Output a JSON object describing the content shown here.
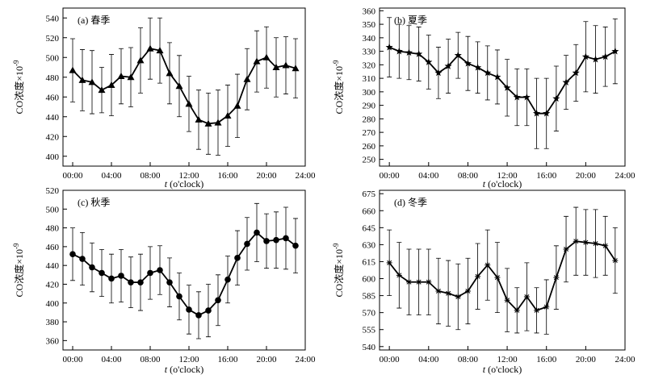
{
  "figure": {
    "xlabel_italic": "t",
    "xlabel_rest": " (o'clock)"
  },
  "chart_data": [
    {
      "type": "line",
      "panel_label": "(a) 春季",
      "marker": "triangle",
      "ylabel": "CO浓度×10",
      "ylabel_exp": "-9",
      "ylim": [
        390,
        550
      ],
      "yticks": [
        400,
        420,
        440,
        460,
        480,
        500,
        520,
        540
      ],
      "xlim": [
        -1,
        24
      ],
      "xticks": [
        0,
        4,
        8,
        12,
        16,
        20,
        24
      ],
      "xticklabels": [
        "00:00",
        "04:00",
        "08:00",
        "12:00",
        "16:00",
        "20:00",
        "24:00"
      ],
      "x": [
        0,
        1,
        2,
        3,
        4,
        5,
        6,
        7,
        8,
        9,
        10,
        11,
        12,
        13,
        14,
        15,
        16,
        17,
        18,
        19,
        20,
        21,
        22,
        23
      ],
      "values": [
        487,
        477,
        475,
        467,
        472,
        481,
        480,
        497,
        509,
        507,
        484,
        471,
        453,
        437,
        433,
        434,
        441,
        451,
        478,
        496,
        500,
        490,
        492,
        489
      ],
      "err": [
        32,
        31,
        32,
        23,
        31,
        28,
        30,
        33,
        31,
        33,
        31,
        31,
        28,
        30,
        31,
        33,
        31,
        32,
        31,
        31,
        31,
        30,
        29,
        30
      ],
      "grid": false
    },
    {
      "type": "line",
      "panel_label": "(b) 夏季",
      "marker": "star",
      "ylabel": "CO浓度×10",
      "ylabel_exp": "-9",
      "ylim": [
        245,
        362
      ],
      "yticks": [
        250,
        260,
        270,
        280,
        290,
        300,
        310,
        320,
        330,
        340,
        350,
        360
      ],
      "xlim": [
        -1,
        24
      ],
      "xticks": [
        0,
        4,
        8,
        12,
        16,
        20,
        24
      ],
      "xticklabels": [
        "00:00",
        "04:00",
        "08:00",
        "12:00",
        "16:00",
        "20:00",
        "24:00"
      ],
      "x": [
        0,
        1,
        2,
        3,
        4,
        5,
        6,
        7,
        8,
        9,
        10,
        11,
        12,
        13,
        14,
        15,
        16,
        17,
        18,
        19,
        20,
        21,
        22,
        23
      ],
      "values": [
        333,
        330,
        329,
        328,
        322,
        314,
        319,
        327,
        321,
        318,
        314,
        311,
        303,
        296,
        296,
        284,
        284,
        295,
        307,
        314,
        326,
        324,
        326,
        330
      ],
      "err": [
        22,
        20,
        20,
        20,
        20,
        19,
        20,
        17,
        20,
        19,
        20,
        20,
        21,
        21,
        21,
        26,
        26,
        24,
        20,
        21,
        26,
        25,
        22,
        24
      ],
      "grid": false
    },
    {
      "type": "line",
      "panel_label": "(c) 秋季",
      "marker": "circle",
      "ylabel": "CO浓度×10",
      "ylabel_exp": "-9",
      "ylim": [
        350,
        520
      ],
      "yticks": [
        360,
        380,
        400,
        420,
        440,
        460,
        480,
        500,
        520
      ],
      "xlim": [
        -1,
        24
      ],
      "xticks": [
        0,
        4,
        8,
        12,
        16,
        20,
        24
      ],
      "xticklabels": [
        "00:00",
        "04:00",
        "08:00",
        "12:00",
        "16:00",
        "20:00",
        "24:00"
      ],
      "x": [
        0,
        1,
        2,
        3,
        4,
        5,
        6,
        7,
        8,
        9,
        10,
        11,
        12,
        13,
        14,
        15,
        16,
        17,
        18,
        19,
        20,
        21,
        22,
        23
      ],
      "values": [
        452,
        447,
        438,
        432,
        426,
        429,
        422,
        422,
        432,
        435,
        422,
        407,
        393,
        387,
        392,
        403,
        425,
        448,
        463,
        475,
        466,
        467,
        469,
        461
      ],
      "err": [
        28,
        28,
        26,
        25,
        26,
        28,
        27,
        30,
        28,
        26,
        26,
        25,
        26,
        25,
        28,
        27,
        25,
        29,
        28,
        31,
        29,
        30,
        33,
        29
      ],
      "grid": false
    },
    {
      "type": "line",
      "panel_label": "(d) 冬季",
      "marker": "asterisk",
      "ylabel": "CO浓度×10",
      "ylabel_exp": "-9",
      "ylim": [
        537,
        678
      ],
      "yticks": [
        540,
        555,
        570,
        585,
        600,
        615,
        630,
        645,
        660,
        675
      ],
      "xlim": [
        -1,
        24
      ],
      "xticks": [
        0,
        4,
        8,
        12,
        16,
        20,
        24
      ],
      "xticklabels": [
        "00:00",
        "04:00",
        "08:00",
        "12:00",
        "16:00",
        "20:00",
        "24:00"
      ],
      "x": [
        0,
        1,
        2,
        3,
        4,
        5,
        6,
        7,
        8,
        9,
        10,
        11,
        12,
        13,
        14,
        15,
        16,
        17,
        18,
        19,
        20,
        21,
        22,
        23
      ],
      "values": [
        614,
        603,
        597,
        597,
        597,
        589,
        587,
        584,
        589,
        602,
        612,
        601,
        581,
        572,
        584,
        572,
        575,
        601,
        626,
        633,
        632,
        631,
        629,
        616
      ],
      "err": [
        29,
        29,
        29,
        29,
        29,
        29,
        29,
        29,
        29,
        29,
        31,
        31,
        28,
        20,
        30,
        20,
        24,
        28,
        29,
        30,
        29,
        30,
        26,
        29
      ],
      "grid": false
    }
  ]
}
